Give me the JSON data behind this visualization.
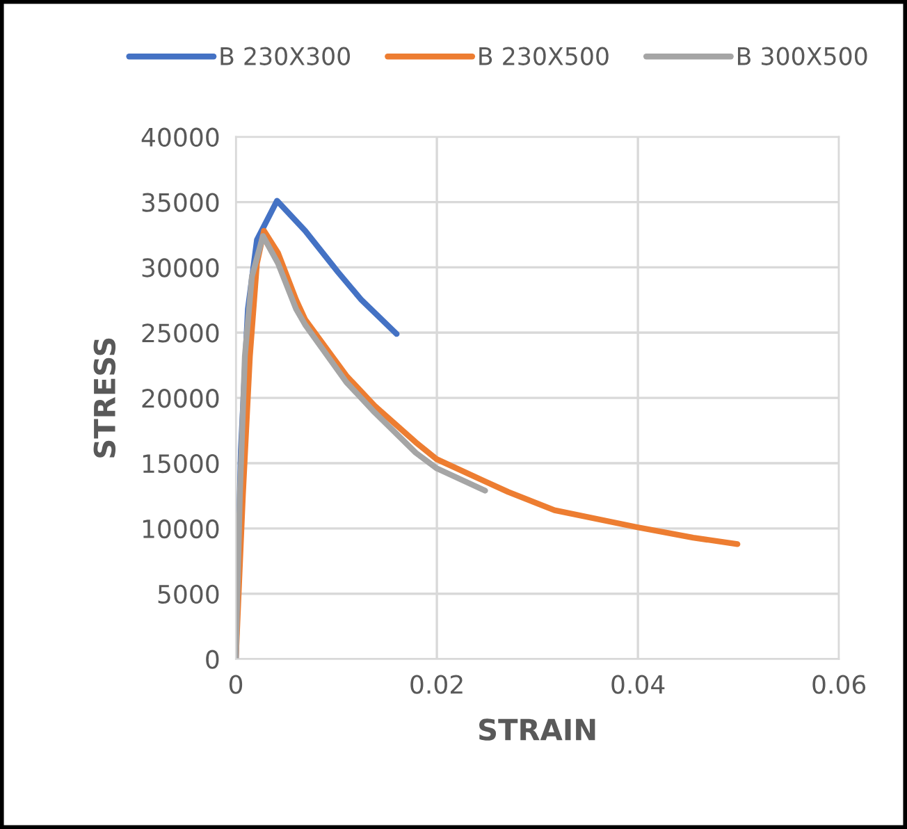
{
  "chart_data": {
    "type": "line",
    "xlabel": "STRAIN",
    "ylabel": "STRESS",
    "xlim": [
      0,
      0.06
    ],
    "xticks": [
      0,
      0.02,
      0.04,
      0.06
    ],
    "ylim": [
      0,
      40000
    ],
    "yticks": [
      0,
      5000,
      10000,
      15000,
      20000,
      25000,
      30000,
      35000,
      40000
    ],
    "grid": true,
    "legend": "top",
    "marker": "none",
    "line_style": "solid",
    "series": [
      {
        "name": "B 230X300",
        "color": "#4472c4",
        "x": [
          0,
          0.0005,
          0.0012,
          0.0021,
          0.0041,
          0.0069,
          0.0102,
          0.0125,
          0.016
        ],
        "values": [
          0,
          16000,
          26800,
          32100,
          35100,
          32800,
          29600,
          27500,
          24900
        ]
      },
      {
        "name": "B 230X500",
        "color": "#ed7d31",
        "x": [
          0,
          0.0007,
          0.0014,
          0.0021,
          0.0028,
          0.0042,
          0.006,
          0.0069,
          0.011,
          0.0138,
          0.0179,
          0.02,
          0.0248,
          0.0271,
          0.0317,
          0.0399,
          0.0455,
          0.0499
        ],
        "values": [
          0,
          12500,
          23200,
          30300,
          32800,
          31100,
          27500,
          26000,
          21700,
          19400,
          16600,
          15300,
          13600,
          12800,
          11400,
          10100,
          9300,
          8800
        ]
      },
      {
        "name": "B 300X500",
        "color": "#a5a5a5",
        "x": [
          0,
          0.0004,
          0.0009,
          0.0016,
          0.0027,
          0.0042,
          0.006,
          0.0069,
          0.011,
          0.0138,
          0.0179,
          0.02,
          0.0248
        ],
        "values": [
          0,
          12500,
          23200,
          29300,
          32400,
          30300,
          26800,
          25600,
          21200,
          18900,
          15800,
          14600,
          12900
        ]
      }
    ]
  }
}
